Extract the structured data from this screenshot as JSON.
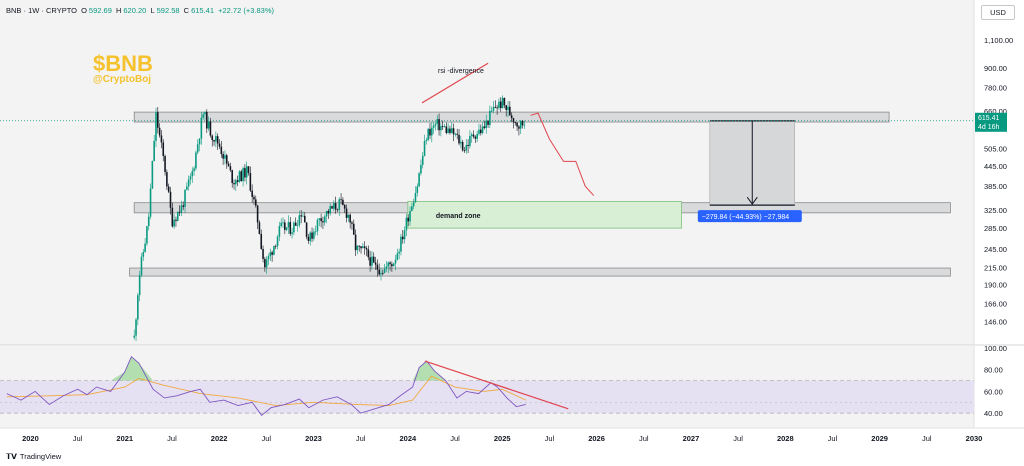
{
  "header": {
    "symbol": "BNB · 1W · CRYPTO",
    "o_label": "O",
    "o": "592.69",
    "h_label": "H",
    "h": "620.20",
    "l_label": "L",
    "l": "592.58",
    "c_label": "C",
    "c": "615.41",
    "change": "+22.72 (+3.83%)"
  },
  "currency_button": "USD",
  "branding": {
    "ticker": "$BNB",
    "handle": "@CryptoBoj"
  },
  "footer": {
    "logo": "TradingView"
  },
  "colors": {
    "up": "#089981",
    "down": "#131722",
    "brand": "#f5c22e",
    "trend": "#e0454d",
    "rsi": "#7e57c2",
    "rsi_ma": "#f0a93e",
    "zone_fill": "#d9dadc",
    "demand_fill": "#d8efd6",
    "measure": "#2962ff"
  },
  "chart_data": [
    {
      "type": "candlestick",
      "title": "BNB · 1W · CRYPTO",
      "price_scale": "log",
      "ylim": [
        125,
        1250
      ],
      "y_ticks": [
        1100,
        900,
        780,
        660,
        505,
        445,
        385,
        325,
        285,
        245,
        215,
        190,
        166,
        146
      ],
      "y_tick_labels": [
        "1,100.00",
        "900.00",
        "780.00",
        "660.00",
        "505.00",
        "445.00",
        "385.00",
        "325.00",
        "285.00",
        "245.00",
        "215.00",
        "190.00",
        "166.00",
        "146.00"
      ],
      "x_labels": [
        "2020",
        "Jul",
        "2021",
        "Jul",
        "2022",
        "Jul",
        "2023",
        "Jul",
        "2024",
        "Jul",
        "2025",
        "Jul",
        "2026",
        "Jul",
        "2027",
        "Jul",
        "2028",
        "Jul",
        "2029",
        "Jul",
        "2030"
      ],
      "x_label_years": [
        2020,
        2020.5,
        2021,
        2021.5,
        2022,
        2022.5,
        2023,
        2023.5,
        2024,
        2024.5,
        2025,
        2025.5,
        2026,
        2026.5,
        2027,
        2027.5,
        2028,
        2028.5,
        2029,
        2029.5,
        2030
      ],
      "price_path": [
        [
          2021.1,
          130
        ],
        [
          2021.15,
          200
        ],
        [
          2021.25,
          300
        ],
        [
          2021.33,
          640
        ],
        [
          2021.42,
          450
        ],
        [
          2021.5,
          300
        ],
        [
          2021.6,
          330
        ],
        [
          2021.72,
          430
        ],
        [
          2021.83,
          650
        ],
        [
          2021.92,
          560
        ],
        [
          2022.0,
          520
        ],
        [
          2022.15,
          400
        ],
        [
          2022.3,
          430
        ],
        [
          2022.42,
          290
        ],
        [
          2022.48,
          215
        ],
        [
          2022.55,
          240
        ],
        [
          2022.65,
          285
        ],
        [
          2022.78,
          285
        ],
        [
          2022.88,
          325
        ],
        [
          2022.95,
          260
        ],
        [
          2023.05,
          300
        ],
        [
          2023.15,
          320
        ],
        [
          2023.28,
          340
        ],
        [
          2023.38,
          310
        ],
        [
          2023.45,
          245
        ],
        [
          2023.55,
          240
        ],
        [
          2023.65,
          215
        ],
        [
          2023.75,
          212
        ],
        [
          2023.85,
          225
        ],
        [
          2023.93,
          260
        ],
        [
          2024.0,
          310
        ],
        [
          2024.1,
          390
        ],
        [
          2024.2,
          560
        ],
        [
          2024.3,
          600
        ],
        [
          2024.4,
          580
        ],
        [
          2024.5,
          555
        ],
        [
          2024.6,
          505
        ],
        [
          2024.7,
          560
        ],
        [
          2024.8,
          580
        ],
        [
          2024.92,
          680
        ],
        [
          2025.0,
          700
        ],
        [
          2025.1,
          640
        ],
        [
          2025.18,
          595
        ],
        [
          2025.25,
          615
        ]
      ],
      "last_price": {
        "label": "615.41",
        "value": 615.41,
        "countdown": "4d 16h"
      },
      "rsi_divergence": {
        "label": "rsi -divergence",
        "from": [
          2024.15,
          700
        ],
        "to": [
          2024.85,
          930
        ]
      },
      "projected_path": [
        [
          2025.3,
          640
        ],
        [
          2025.38,
          650
        ],
        [
          2025.5,
          540
        ],
        [
          2025.65,
          460
        ],
        [
          2025.78,
          460
        ],
        [
          2025.88,
          385
        ],
        [
          2025.97,
          360
        ]
      ],
      "resistance_zone": {
        "x": [
          2021.1,
          2029.1
        ],
        "y": [
          610,
          655
        ]
      },
      "support_zone": {
        "x": [
          2021.1,
          2029.75
        ],
        "y": [
          318,
          342
        ]
      },
      "range_low": {
        "x": [
          2021.05,
          2029.75
        ],
        "y": [
          202,
          214
        ]
      },
      "demand_zone": {
        "label": "demand zone",
        "x": [
          2024.0,
          2026.9
        ],
        "y": [
          285,
          345
        ]
      },
      "measure": {
        "x": [
          2027.2,
          2028.1
        ],
        "from": 615,
        "to": 336,
        "label": "−279.84 (−44.93%) −27,984"
      }
    },
    {
      "type": "line",
      "title": "RSI",
      "ylim": [
        30,
        100
      ],
      "y_ticks": [
        100,
        80,
        60,
        40
      ],
      "y_tick_labels": [
        "100.00",
        "80.00",
        "60.00",
        "40.00"
      ],
      "band": [
        40,
        70
      ],
      "middle": 50,
      "series": [
        {
          "points": [
            [
              2019.75,
              58
            ],
            [
              2019.9,
              52
            ],
            [
              2020.05,
              60
            ],
            [
              2020.2,
              48
            ],
            [
              2020.35,
              56
            ],
            [
              2020.5,
              62
            ],
            [
              2020.6,
              57
            ],
            [
              2020.7,
              64
            ],
            [
              2020.85,
              60
            ],
            [
              2021.0,
              78
            ],
            [
              2021.07,
              92
            ],
            [
              2021.15,
              86
            ],
            [
              2021.3,
              62
            ],
            [
              2021.42,
              54
            ],
            [
              2021.55,
              56
            ],
            [
              2021.7,
              60
            ],
            [
              2021.8,
              62
            ],
            [
              2021.9,
              50
            ],
            [
              2022.05,
              52
            ],
            [
              2022.2,
              47
            ],
            [
              2022.35,
              50
            ],
            [
              2022.45,
              38
            ],
            [
              2022.55,
              45
            ],
            [
              2022.7,
              48
            ],
            [
              2022.85,
              53
            ],
            [
              2022.95,
              45
            ],
            [
              2023.1,
              52
            ],
            [
              2023.25,
              55
            ],
            [
              2023.4,
              48
            ],
            [
              2023.5,
              40
            ],
            [
              2023.65,
              44
            ],
            [
              2023.8,
              48
            ],
            [
              2023.92,
              56
            ],
            [
              2024.05,
              64
            ],
            [
              2024.12,
              82
            ],
            [
              2024.2,
              88
            ],
            [
              2024.28,
              79
            ],
            [
              2024.4,
              70
            ],
            [
              2024.52,
              54
            ],
            [
              2024.62,
              60
            ],
            [
              2024.75,
              58
            ],
            [
              2024.88,
              68
            ],
            [
              2024.95,
              64
            ],
            [
              2025.05,
              54
            ],
            [
              2025.15,
              46
            ],
            [
              2025.25,
              48
            ]
          ]
        },
        {
          "points": [
            [
              2019.75,
              55
            ],
            [
              2020.2,
              56
            ],
            [
              2020.6,
              57
            ],
            [
              2021.0,
              64
            ],
            [
              2021.15,
              72
            ],
            [
              2021.4,
              66
            ],
            [
              2021.8,
              58
            ],
            [
              2022.2,
              54
            ],
            [
              2022.6,
              47
            ],
            [
              2023.0,
              50
            ],
            [
              2023.45,
              48
            ],
            [
              2023.8,
              47
            ],
            [
              2024.05,
              52
            ],
            [
              2024.25,
              74
            ],
            [
              2024.5,
              64
            ],
            [
              2024.8,
              60
            ],
            [
              2025.0,
              62
            ],
            [
              2025.25,
              52
            ]
          ]
        }
      ],
      "divergence": {
        "from": [
          2024.18,
          88
        ],
        "to": [
          2025.7,
          44
        ]
      }
    }
  ]
}
